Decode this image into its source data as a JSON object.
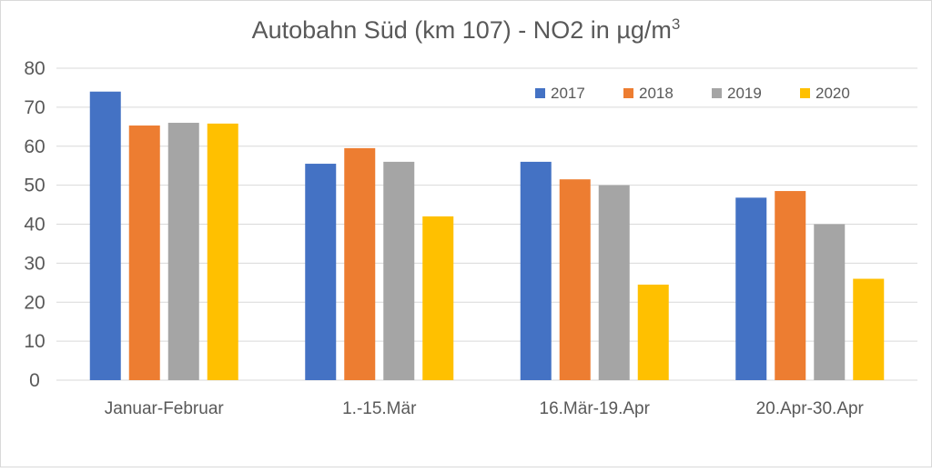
{
  "chart_data": {
    "type": "bar",
    "title": "Autobahn Süd (km 107) - NO2 in µg/m",
    "title_superscript": "3",
    "categories": [
      "Januar-Februar",
      "1.-15.Mär",
      "16.Mär-19.Apr",
      "20.Apr-30.Apr"
    ],
    "series": [
      {
        "name": "2017",
        "color": "#4472C4",
        "values": [
          74,
          55.5,
          56,
          46.8
        ]
      },
      {
        "name": "2018",
        "color": "#ED7D31",
        "values": [
          65.3,
          59.5,
          51.5,
          48.5
        ]
      },
      {
        "name": "2019",
        "color": "#A5A5A5",
        "values": [
          66,
          56,
          50,
          40
        ]
      },
      {
        "name": "2020",
        "color": "#FFC000",
        "values": [
          65.8,
          42,
          24.5,
          26
        ]
      }
    ],
    "ylim": [
      0,
      80
    ],
    "yticks": [
      "0",
      "10",
      "20",
      "30",
      "40",
      "50",
      "60",
      "70",
      "80"
    ],
    "xlabel": "",
    "ylabel": "",
    "grid": true,
    "legend_position": "top-right"
  }
}
